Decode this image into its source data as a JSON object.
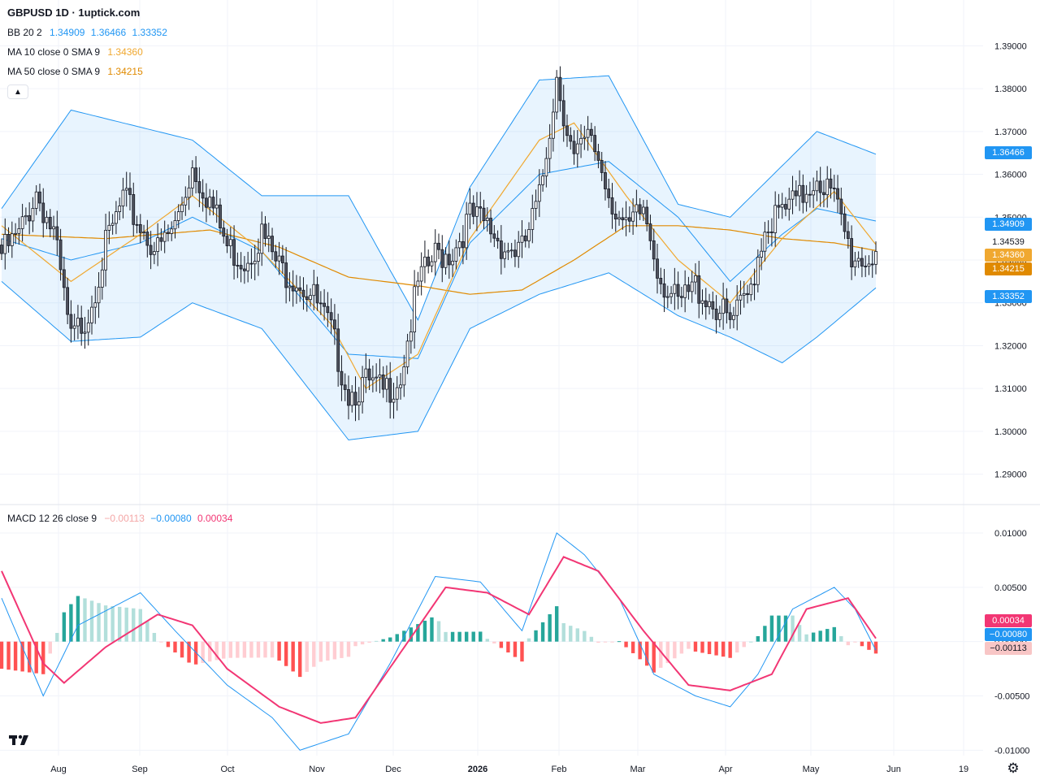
{
  "header": {
    "title": "GBPUSD 1D · 1uptick.com"
  },
  "legends": {
    "bb": {
      "name": "BB 20 2",
      "v1": "1.34909",
      "v2": "1.36466",
      "v3": "1.33352",
      "color": "#2196f3"
    },
    "ma10": {
      "name": "MA 10 close 0 SMA 9",
      "value": "1.34360",
      "color": "#f0a830"
    },
    "ma50": {
      "name": "MA 50 close 0 SMA 9",
      "value": "1.34215",
      "color": "#e08a00"
    },
    "macd": {
      "name": "MACD 12 26 close 9",
      "v1": "−0.00113",
      "v2": "−0.00080",
      "v3": "0.00034",
      "c1": "#f4a6a6",
      "c2": "#2196f3",
      "c3": "#f23674"
    }
  },
  "price_tags": {
    "bb_upper": "1.36466",
    "bb_mid": "1.34909",
    "last": "1.34539",
    "ma10": "1.34360",
    "ma50": "1.34215",
    "bb_lower": "1.33352"
  },
  "macd_tags": {
    "signal": "0.00034",
    "macd": "−0.00080",
    "hist": "−0.00113"
  },
  "icons": {
    "collapse": "chevron-up-icon",
    "logo": "tradingview-logo",
    "settings": "gear-icon"
  },
  "chart_data": {
    "type": "candlestick",
    "title": "GBPUSD 1D · 1uptick.com",
    "x_tick_labels": [
      "Aug",
      "Sep",
      "Oct",
      "Nov",
      "Dec",
      "2026",
      "Feb",
      "Mar",
      "Apr",
      "May",
      "Jun",
      "19"
    ],
    "price_axis": {
      "ylim": [
        1.285,
        1.395
      ],
      "ticks": [
        "1.39000",
        "1.38000",
        "1.37000",
        "1.36000",
        "1.35000",
        "1.34000",
        "1.33000",
        "1.32000",
        "1.31000",
        "1.30000",
        "1.29000"
      ]
    },
    "macd_axis": {
      "ylim": [
        -0.0105,
        0.0112
      ],
      "ticks": [
        "0.01000",
        "0.00500",
        "0.00000",
        "-0.00500",
        "-0.01000"
      ]
    },
    "close_path": [
      [
        0,
        1.3435
      ],
      [
        5,
        1.3475
      ],
      [
        10,
        1.358
      ],
      [
        15,
        1.348
      ],
      [
        20,
        1.323
      ],
      [
        25,
        1.33
      ],
      [
        30,
        1.345
      ],
      [
        35,
        1.356
      ],
      [
        40,
        1.35
      ],
      [
        45,
        1.344
      ],
      [
        50,
        1.35
      ],
      [
        55,
        1.364
      ],
      [
        60,
        1.356
      ],
      [
        65,
        1.345
      ],
      [
        70,
        1.342
      ],
      [
        75,
        1.348
      ],
      [
        80,
        1.34
      ],
      [
        85,
        1.338
      ],
      [
        90,
        1.333
      ],
      [
        95,
        1.325
      ],
      [
        100,
        1.311
      ],
      [
        105,
        1.313
      ],
      [
        110,
        1.311
      ],
      [
        115,
        1.315
      ],
      [
        120,
        1.336
      ],
      [
        125,
        1.343
      ],
      [
        130,
        1.344
      ],
      [
        135,
        1.352
      ],
      [
        140,
        1.35
      ],
      [
        145,
        1.345
      ],
      [
        150,
        1.344
      ],
      [
        155,
        1.356
      ],
      [
        160,
        1.385
      ],
      [
        165,
        1.365
      ],
      [
        170,
        1.371
      ],
      [
        175,
        1.358
      ],
      [
        180,
        1.348
      ],
      [
        185,
        1.354
      ],
      [
        190,
        1.338
      ],
      [
        195,
        1.331
      ],
      [
        200,
        1.336
      ],
      [
        205,
        1.332
      ],
      [
        210,
        1.327
      ],
      [
        215,
        1.333
      ],
      [
        220,
        1.35
      ],
      [
        225,
        1.353
      ],
      [
        230,
        1.356
      ],
      [
        235,
        1.362
      ],
      [
        240,
        1.356
      ],
      [
        245,
        1.343
      ],
      [
        250,
        1.342
      ],
      [
        252,
        1.3454
      ]
    ],
    "candles_range": {
      "min_low": 1.301,
      "max_high": 1.387
    },
    "bollinger": {
      "upper": [
        [
          0,
          1.352
        ],
        [
          20,
          1.375
        ],
        [
          40,
          1.371
        ],
        [
          55,
          1.368
        ],
        [
          75,
          1.355
        ],
        [
          100,
          1.355
        ],
        [
          120,
          1.326
        ],
        [
          135,
          1.357
        ],
        [
          155,
          1.382
        ],
        [
          175,
          1.383
        ],
        [
          195,
          1.353
        ],
        [
          210,
          1.35
        ],
        [
          225,
          1.362
        ],
        [
          235,
          1.37
        ],
        [
          252,
          1.3647
        ]
      ],
      "mid": [
        [
          0,
          1.345
        ],
        [
          20,
          1.34
        ],
        [
          40,
          1.344
        ],
        [
          55,
          1.35
        ],
        [
          75,
          1.342
        ],
        [
          100,
          1.318
        ],
        [
          120,
          1.317
        ],
        [
          135,
          1.344
        ],
        [
          155,
          1.36
        ],
        [
          175,
          1.363
        ],
        [
          195,
          1.35
        ],
        [
          210,
          1.335
        ],
        [
          225,
          1.346
        ],
        [
          235,
          1.352
        ],
        [
          252,
          1.3491
        ]
      ],
      "lower": [
        [
          0,
          1.335
        ],
        [
          20,
          1.321
        ],
        [
          40,
          1.322
        ],
        [
          55,
          1.33
        ],
        [
          75,
          1.324
        ],
        [
          100,
          1.298
        ],
        [
          120,
          1.3
        ],
        [
          135,
          1.324
        ],
        [
          155,
          1.332
        ],
        [
          175,
          1.337
        ],
        [
          195,
          1.327
        ],
        [
          210,
          1.322
        ],
        [
          225,
          1.316
        ],
        [
          235,
          1.322
        ],
        [
          252,
          1.3335
        ]
      ]
    },
    "ma10": [
      [
        0,
        1.348
      ],
      [
        20,
        1.335
      ],
      [
        40,
        1.346
      ],
      [
        55,
        1.355
      ],
      [
        75,
        1.342
      ],
      [
        95,
        1.325
      ],
      [
        105,
        1.31
      ],
      [
        120,
        1.318
      ],
      [
        135,
        1.345
      ],
      [
        155,
        1.368
      ],
      [
        165,
        1.372
      ],
      [
        180,
        1.355
      ],
      [
        195,
        1.34
      ],
      [
        210,
        1.33
      ],
      [
        225,
        1.345
      ],
      [
        240,
        1.356
      ],
      [
        252,
        1.3436
      ]
    ],
    "ma50": [
      [
        0,
        1.346
      ],
      [
        30,
        1.345
      ],
      [
        60,
        1.347
      ],
      [
        80,
        1.343
      ],
      [
        100,
        1.336
      ],
      [
        120,
        1.334
      ],
      [
        135,
        1.332
      ],
      [
        150,
        1.333
      ],
      [
        165,
        1.34
      ],
      [
        180,
        1.348
      ],
      [
        195,
        1.348
      ],
      [
        210,
        1.347
      ],
      [
        225,
        1.345
      ],
      [
        240,
        1.344
      ],
      [
        252,
        1.3422
      ]
    ],
    "macd": {
      "macd_line": [
        [
          0,
          0.004
        ],
        [
          12,
          -0.005
        ],
        [
          22,
          0.0015
        ],
        [
          40,
          0.0045
        ],
        [
          50,
          0.001
        ],
        [
          65,
          -0.004
        ],
        [
          78,
          -0.007
        ],
        [
          86,
          -0.01
        ],
        [
          100,
          -0.0085
        ],
        [
          112,
          -0.002
        ],
        [
          125,
          0.006
        ],
        [
          138,
          0.0055
        ],
        [
          150,
          0.001
        ],
        [
          160,
          0.01
        ],
        [
          168,
          0.008
        ],
        [
          178,
          0.004
        ],
        [
          188,
          -0.003
        ],
        [
          200,
          -0.005
        ],
        [
          210,
          -0.006
        ],
        [
          218,
          -0.003
        ],
        [
          228,
          0.003
        ],
        [
          240,
          0.005
        ],
        [
          246,
          0.003
        ],
        [
          252,
          -0.0008
        ]
      ],
      "signal_line": [
        [
          0,
          0.0065
        ],
        [
          12,
          -0.002
        ],
        [
          18,
          -0.0038
        ],
        [
          30,
          -0.0005
        ],
        [
          45,
          0.0025
        ],
        [
          55,
          0.0015
        ],
        [
          65,
          -0.0025
        ],
        [
          80,
          -0.006
        ],
        [
          92,
          -0.0075
        ],
        [
          102,
          -0.007
        ],
        [
          115,
          -0.001
        ],
        [
          128,
          0.005
        ],
        [
          140,
          0.0045
        ],
        [
          152,
          0.0025
        ],
        [
          162,
          0.0078
        ],
        [
          172,
          0.0065
        ],
        [
          185,
          0.001
        ],
        [
          198,
          -0.004
        ],
        [
          210,
          -0.0045
        ],
        [
          222,
          -0.003
        ],
        [
          232,
          0.003
        ],
        [
          244,
          0.004
        ],
        [
          252,
          0.0003
        ]
      ],
      "histogram_current": -0.00113
    }
  }
}
